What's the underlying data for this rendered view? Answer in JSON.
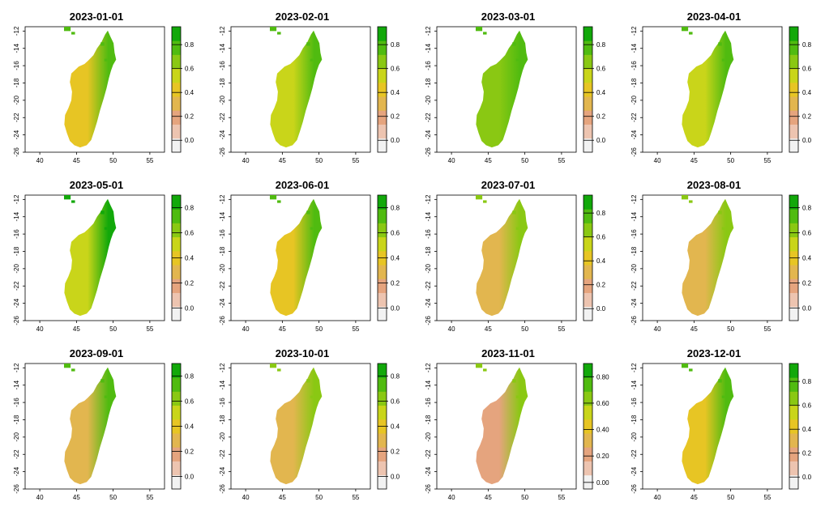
{
  "chart_data": {
    "type": "heatmap",
    "description_units": "NDVI",
    "x_axis": {
      "range": [
        38,
        57
      ],
      "ticks": [
        40,
        45,
        50,
        55
      ]
    },
    "y_axis": {
      "range": [
        -26,
        -11.5
      ],
      "ticks": [
        -12,
        -14,
        -16,
        -18,
        -20,
        -22,
        -24,
        -26
      ]
    },
    "palette": [
      "#f2f2f2",
      "#edc4b0",
      "#e5a47e",
      "#e2b64f",
      "#e7c524",
      "#c9d51a",
      "#8ac813",
      "#50bb10",
      "#12a80a"
    ],
    "panels": [
      {
        "title": "2023-01-01",
        "value_range": [
          -0.1,
          0.95
        ],
        "legend_ticks": [
          "0.0",
          "0.2",
          "0.4",
          "0.6",
          "0.8"
        ],
        "west_value": 0.4,
        "east_value": 0.72
      },
      {
        "title": "2023-02-01",
        "value_range": [
          -0.1,
          0.95
        ],
        "legend_ticks": [
          "0.0",
          "0.2",
          "0.4",
          "0.6",
          "0.8"
        ],
        "west_value": 0.55,
        "east_value": 0.8
      },
      {
        "title": "2023-03-01",
        "value_range": [
          -0.1,
          0.95
        ],
        "legend_ticks": [
          "0.0",
          "0.2",
          "0.4",
          "0.6",
          "0.8"
        ],
        "west_value": 0.6,
        "east_value": 0.82
      },
      {
        "title": "2023-04-01",
        "value_range": [
          -0.1,
          0.95
        ],
        "legend_ticks": [
          "0.0",
          "0.2",
          "0.4",
          "0.6",
          "0.8"
        ],
        "west_value": 0.55,
        "east_value": 0.82
      },
      {
        "title": "2023-05-01",
        "value_range": [
          -0.1,
          0.9
        ],
        "legend_ticks": [
          "0.0",
          "0.2",
          "0.4",
          "0.6",
          "0.8"
        ],
        "west_value": 0.55,
        "east_value": 0.8
      },
      {
        "title": "2023-06-01",
        "value_range": [
          -0.1,
          0.9
        ],
        "legend_ticks": [
          "0.0",
          "0.2",
          "0.4",
          "0.6",
          "0.8"
        ],
        "west_value": 0.42,
        "east_value": 0.78
      },
      {
        "title": "2023-07-01",
        "value_range": [
          -0.1,
          0.95
        ],
        "legend_ticks": [
          "0.0",
          "0.2",
          "0.4",
          "0.6",
          "0.8"
        ],
        "west_value": 0.32,
        "east_value": 0.7
      },
      {
        "title": "2023-08-01",
        "value_range": [
          -0.1,
          0.9
        ],
        "legend_ticks": [
          "0.0",
          "0.2",
          "0.4",
          "0.6",
          "0.8"
        ],
        "west_value": 0.25,
        "east_value": 0.66
      },
      {
        "title": "2023-09-01",
        "value_range": [
          -0.1,
          0.9
        ],
        "legend_ticks": [
          "0.0",
          "0.2",
          "0.4",
          "0.6",
          "0.8"
        ],
        "west_value": 0.28,
        "east_value": 0.68
      },
      {
        "title": "2023-10-01",
        "value_range": [
          -0.1,
          0.9
        ],
        "legend_ticks": [
          "0.0",
          "0.2",
          "0.4",
          "0.6",
          "0.8"
        ],
        "west_value": 0.28,
        "east_value": 0.66
      },
      {
        "title": "2023-11-01",
        "value_range": [
          -0.05,
          0.9
        ],
        "legend_ticks": [
          "0.00",
          "0.20",
          "0.40",
          "0.60",
          "0.80"
        ],
        "west_value": 0.25,
        "east_value": 0.66
      },
      {
        "title": "2023-12-01",
        "value_range": [
          -0.1,
          0.95
        ],
        "legend_ticks": [
          "0.0",
          "0.2",
          "0.4",
          "0.6",
          "0.8"
        ],
        "west_value": 0.38,
        "east_value": 0.75
      }
    ]
  }
}
